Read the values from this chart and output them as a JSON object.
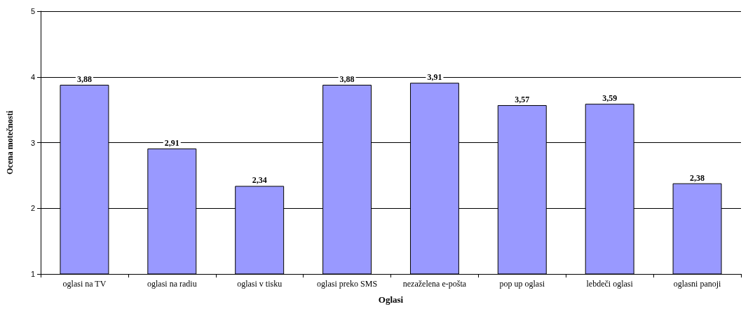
{
  "chart_data": {
    "type": "bar",
    "xlabel": "Oglasi",
    "ylabel": "Ocena motečnosti",
    "categories": [
      "oglasi na TV",
      "oglasi na radiu",
      "oglasi v tisku",
      "oglasi preko SMS",
      "nezaželena e-pošta",
      "pop up oglasi",
      "lebdeči oglasi",
      "oglasni panoji"
    ],
    "values": [
      3.88,
      2.91,
      2.34,
      3.88,
      3.91,
      3.57,
      3.59,
      2.38
    ],
    "value_labels": [
      "3,88",
      "2,91",
      "2,34",
      "3,88",
      "3,91",
      "3,57",
      "3,59",
      "2,38"
    ],
    "color": "#9999ff",
    "ylim": [
      1,
      5
    ],
    "yticks": [
      1,
      2,
      3,
      4,
      5
    ],
    "grid": "y"
  }
}
